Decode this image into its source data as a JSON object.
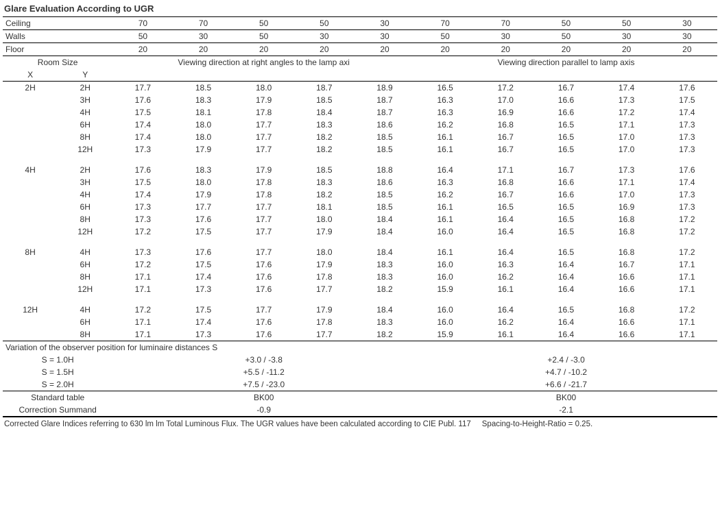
{
  "title": "Glare Evaluation According to UGR",
  "param_labels": {
    "ceiling": "Ceiling",
    "walls": "Walls",
    "floor": "Floor"
  },
  "ceiling": [
    "70",
    "70",
    "50",
    "50",
    "30",
    "70",
    "70",
    "50",
    "50",
    "30"
  ],
  "walls": [
    "50",
    "30",
    "50",
    "30",
    "30",
    "50",
    "30",
    "50",
    "30",
    "30"
  ],
  "floor": [
    "20",
    "20",
    "20",
    "20",
    "20",
    "20",
    "20",
    "20",
    "20",
    "20"
  ],
  "room_size_label": "Room Size",
  "room_x_label": "X",
  "room_y_label": "Y",
  "view_right": "Viewing direction at right angles to the lamp axi",
  "view_parallel": "Viewing direction parallel to lamp axis",
  "groups": [
    {
      "x": "2H",
      "rows": [
        {
          "y": "2H",
          "v": [
            "17.7",
            "18.5",
            "18.0",
            "18.7",
            "18.9",
            "16.5",
            "17.2",
            "16.7",
            "17.4",
            "17.6"
          ]
        },
        {
          "y": "3H",
          "v": [
            "17.6",
            "18.3",
            "17.9",
            "18.5",
            "18.7",
            "16.3",
            "17.0",
            "16.6",
            "17.3",
            "17.5"
          ]
        },
        {
          "y": "4H",
          "v": [
            "17.5",
            "18.1",
            "17.8",
            "18.4",
            "18.7",
            "16.3",
            "16.9",
            "16.6",
            "17.2",
            "17.4"
          ]
        },
        {
          "y": "6H",
          "v": [
            "17.4",
            "18.0",
            "17.7",
            "18.3",
            "18.6",
            "16.2",
            "16.8",
            "16.5",
            "17.1",
            "17.3"
          ]
        },
        {
          "y": "8H",
          "v": [
            "17.4",
            "18.0",
            "17.7",
            "18.2",
            "18.5",
            "16.1",
            "16.7",
            "16.5",
            "17.0",
            "17.3"
          ]
        },
        {
          "y": "12H",
          "v": [
            "17.3",
            "17.9",
            "17.7",
            "18.2",
            "18.5",
            "16.1",
            "16.7",
            "16.5",
            "17.0",
            "17.3"
          ]
        }
      ]
    },
    {
      "x": "4H",
      "rows": [
        {
          "y": "2H",
          "v": [
            "17.6",
            "18.3",
            "17.9",
            "18.5",
            "18.8",
            "16.4",
            "17.1",
            "16.7",
            "17.3",
            "17.6"
          ]
        },
        {
          "y": "3H",
          "v": [
            "17.5",
            "18.0",
            "17.8",
            "18.3",
            "18.6",
            "16.3",
            "16.8",
            "16.6",
            "17.1",
            "17.4"
          ]
        },
        {
          "y": "4H",
          "v": [
            "17.4",
            "17.9",
            "17.8",
            "18.2",
            "18.5",
            "16.2",
            "16.7",
            "16.6",
            "17.0",
            "17.3"
          ]
        },
        {
          "y": "6H",
          "v": [
            "17.3",
            "17.7",
            "17.7",
            "18.1",
            "18.5",
            "16.1",
            "16.5",
            "16.5",
            "16.9",
            "17.3"
          ]
        },
        {
          "y": "8H",
          "v": [
            "17.3",
            "17.6",
            "17.7",
            "18.0",
            "18.4",
            "16.1",
            "16.4",
            "16.5",
            "16.8",
            "17.2"
          ]
        },
        {
          "y": "12H",
          "v": [
            "17.2",
            "17.5",
            "17.7",
            "17.9",
            "18.4",
            "16.0",
            "16.4",
            "16.5",
            "16.8",
            "17.2"
          ]
        }
      ]
    },
    {
      "x": "8H",
      "rows": [
        {
          "y": "4H",
          "v": [
            "17.3",
            "17.6",
            "17.7",
            "18.0",
            "18.4",
            "16.1",
            "16.4",
            "16.5",
            "16.8",
            "17.2"
          ]
        },
        {
          "y": "6H",
          "v": [
            "17.2",
            "17.5",
            "17.6",
            "17.9",
            "18.3",
            "16.0",
            "16.3",
            "16.4",
            "16.7",
            "17.1"
          ]
        },
        {
          "y": "8H",
          "v": [
            "17.1",
            "17.4",
            "17.6",
            "17.8",
            "18.3",
            "16.0",
            "16.2",
            "16.4",
            "16.6",
            "17.1"
          ]
        },
        {
          "y": "12H",
          "v": [
            "17.1",
            "17.3",
            "17.6",
            "17.7",
            "18.2",
            "15.9",
            "16.1",
            "16.4",
            "16.6",
            "17.1"
          ]
        }
      ]
    },
    {
      "x": "12H",
      "rows": [
        {
          "y": "4H",
          "v": [
            "17.2",
            "17.5",
            "17.7",
            "17.9",
            "18.4",
            "16.0",
            "16.4",
            "16.5",
            "16.8",
            "17.2"
          ]
        },
        {
          "y": "6H",
          "v": [
            "17.1",
            "17.4",
            "17.6",
            "17.8",
            "18.3",
            "16.0",
            "16.2",
            "16.4",
            "16.6",
            "17.1"
          ]
        },
        {
          "y": "8H",
          "v": [
            "17.1",
            "17.3",
            "17.6",
            "17.7",
            "18.2",
            "15.9",
            "16.1",
            "16.4",
            "16.6",
            "17.1"
          ]
        }
      ]
    }
  ],
  "variation_label": "Variation of the observer position for luminaire distances S",
  "variation": [
    {
      "s": "S = 1.0H",
      "a": "+3.0 / -3.8",
      "b": "+2.4 / -3.0"
    },
    {
      "s": "S = 1.5H",
      "a": "+5.5 / -11.2",
      "b": "+4.7 / -10.2"
    },
    {
      "s": "S = 2.0H",
      "a": "+7.5 / -23.0",
      "b": "+6.6 / -21.7"
    }
  ],
  "std_table_label": "Standard table",
  "std_table": {
    "a": "BK00",
    "b": "BK00"
  },
  "corr_label": "Correction Summand",
  "corr": {
    "a": "-0.9",
    "b": "-2.1"
  },
  "footer_a": "Corrected Glare Indices referring to 630 lm lm Total Luminous Flux. The UGR values have been calculated according to CIE Publ. 117",
  "footer_b": "Spacing-to-Height-Ratio = 0.25."
}
